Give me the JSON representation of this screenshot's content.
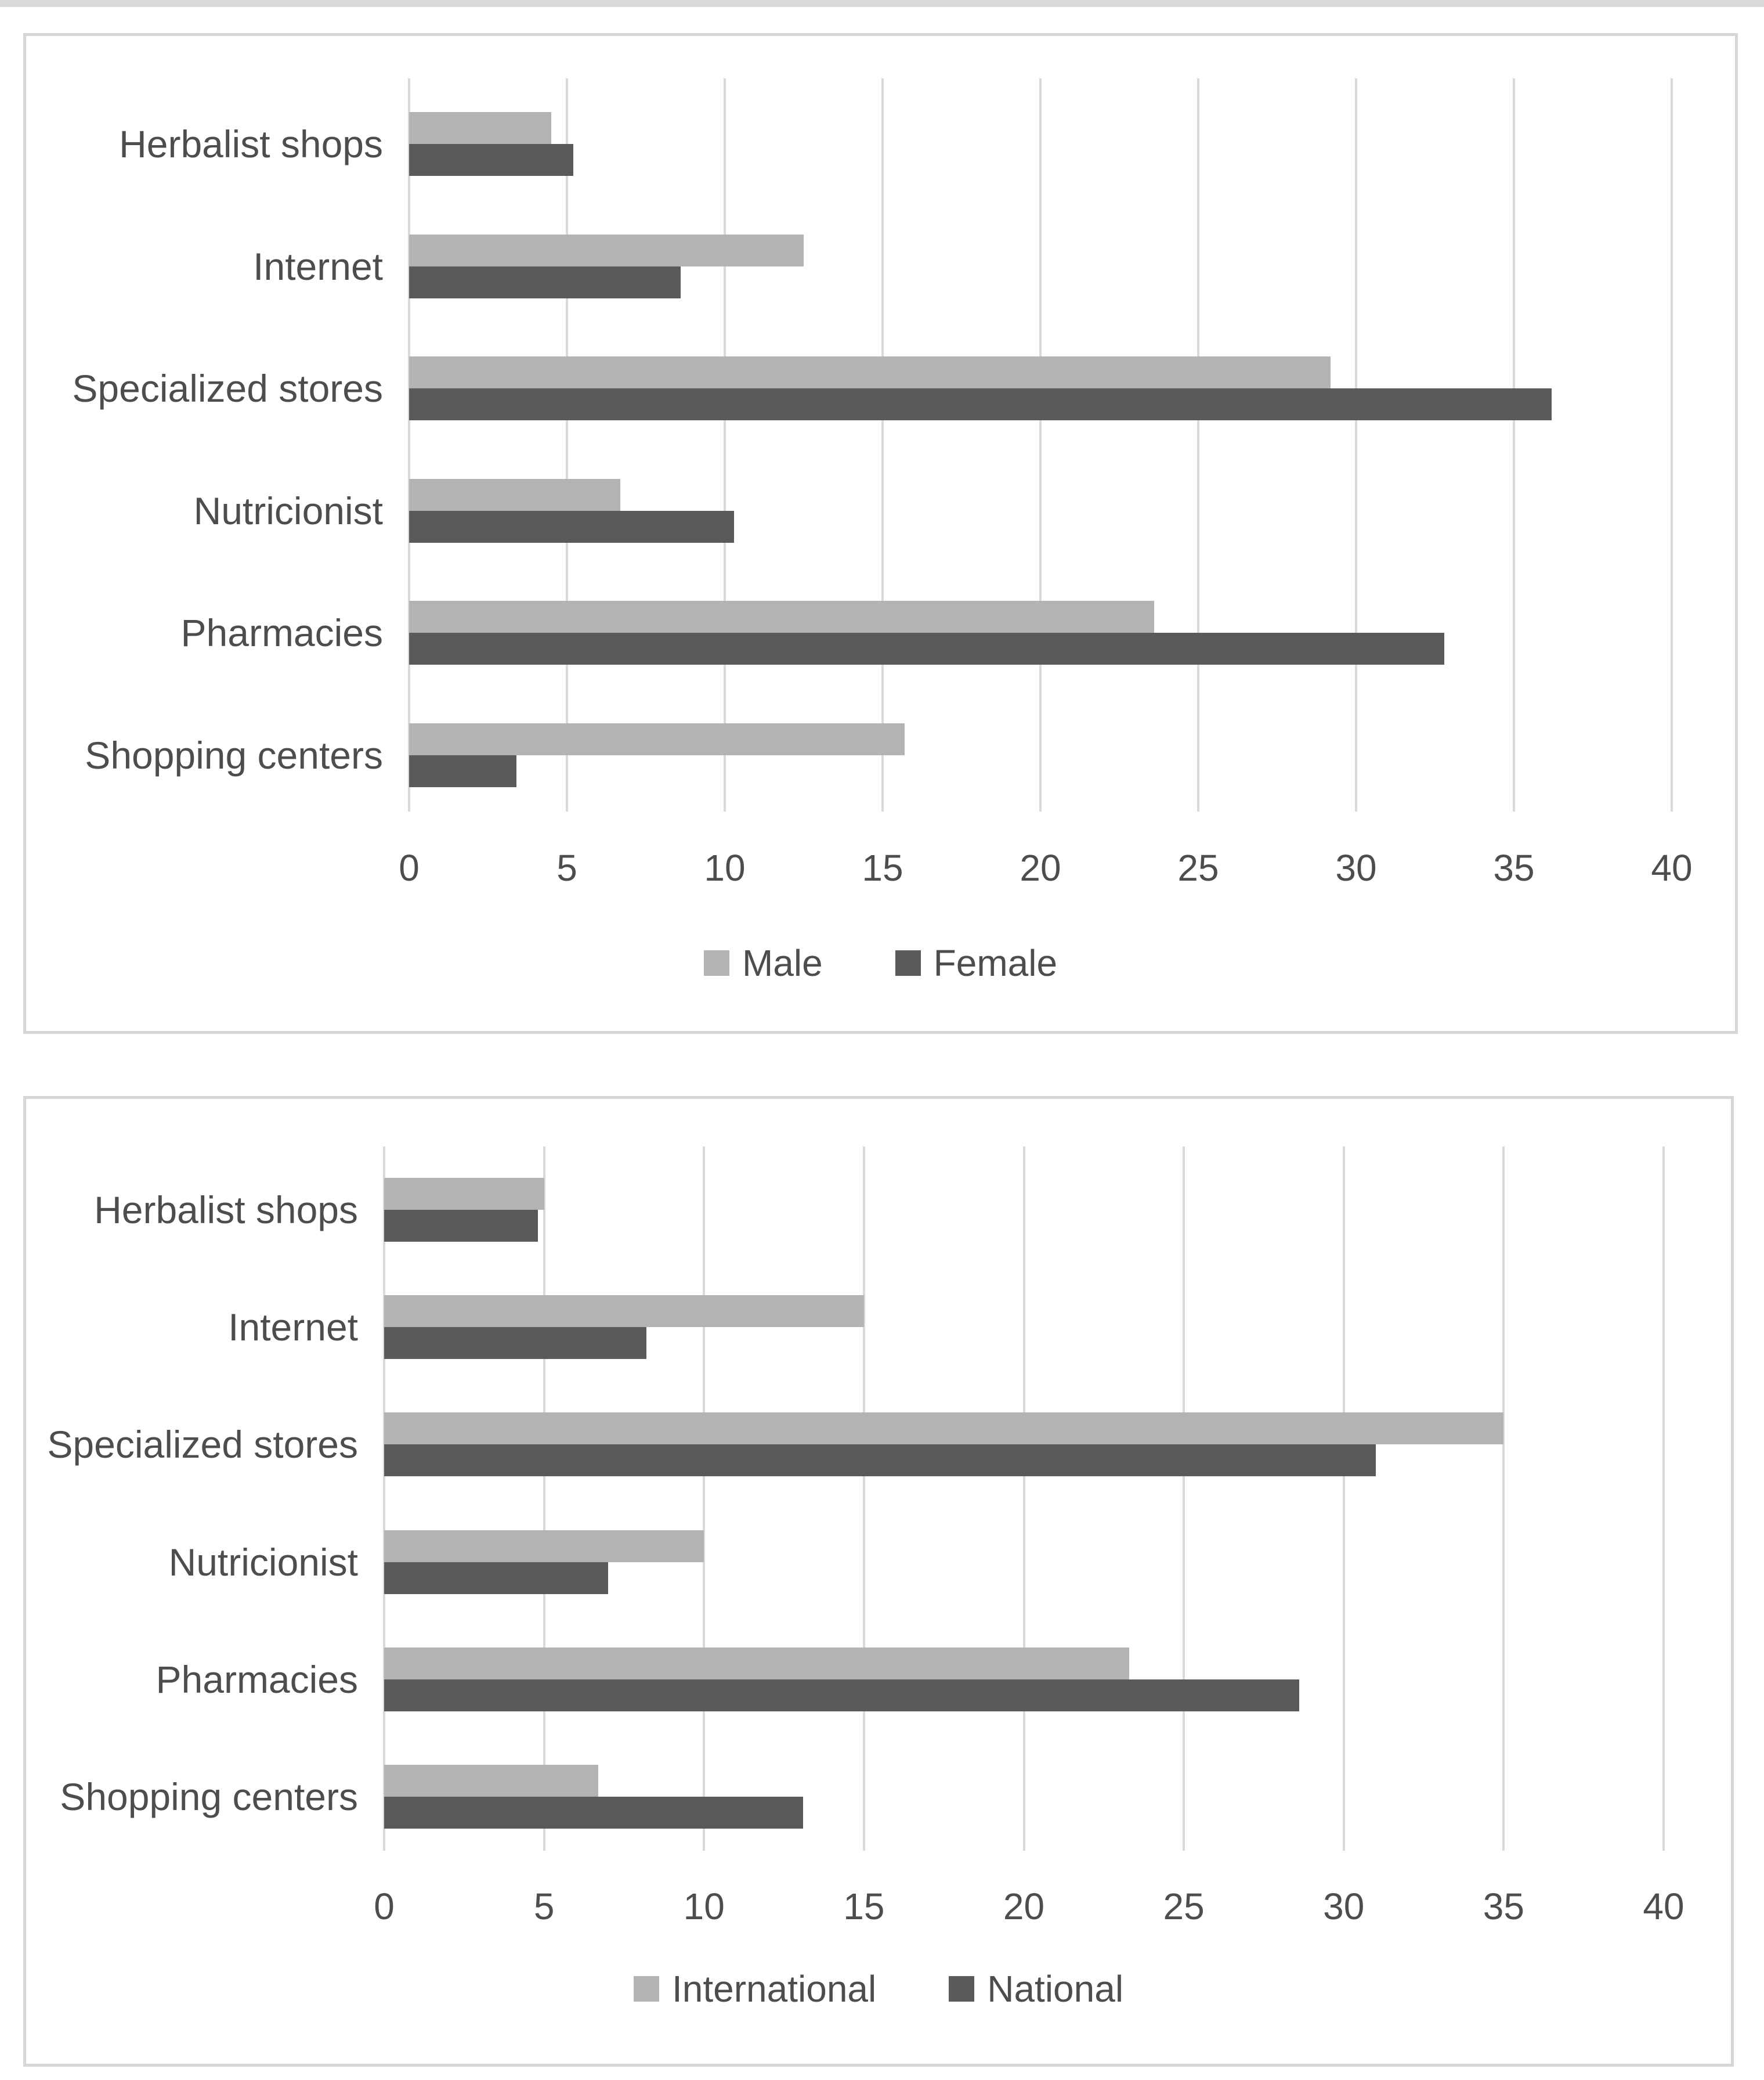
{
  "page": {
    "background": "#ffffff",
    "edge_strip_color": "#d9d9d9",
    "panel_border_color": "#d6d6d6",
    "gridline_color": "#d9d9d9",
    "text_color": "#4d4d4d"
  },
  "chart_data": [
    {
      "type": "bar",
      "orientation": "horizontal",
      "title": "",
      "categories": [
        "Herbalist shops",
        "Internet",
        "Specialized stores",
        "Nutricionist",
        "Pharmacies",
        "Shopping centers"
      ],
      "series": [
        {
          "name": "Male",
          "color": "#b3b3b3",
          "values": [
            4.5,
            12.5,
            29.2,
            6.7,
            23.6,
            15.7
          ]
        },
        {
          "name": "Female",
          "color": "#5a5a5a",
          "values": [
            5.2,
            8.6,
            36.2,
            10.3,
            32.8,
            3.4
          ]
        }
      ],
      "xlabel": "",
      "ylabel": "",
      "xlim": [
        0,
        40
      ],
      "ticks": [
        0,
        5,
        10,
        15,
        20,
        25,
        30,
        35,
        40
      ],
      "grid": true,
      "legend_position": "bottom"
    },
    {
      "type": "bar",
      "orientation": "horizontal",
      "title": "",
      "categories": [
        "Herbalist shops",
        "Internet",
        "Specialized stores",
        "Nutricionist",
        "Pharmacies",
        "Shopping centers"
      ],
      "series": [
        {
          "name": "International",
          "color": "#b3b3b3",
          "values": [
            5.0,
            15.0,
            35.0,
            10.0,
            23.3,
            6.7
          ]
        },
        {
          "name": "National",
          "color": "#5a5a5a",
          "values": [
            4.8,
            8.2,
            31.0,
            7.0,
            28.6,
            13.1
          ]
        }
      ],
      "xlabel": "",
      "ylabel": "",
      "xlim": [
        0,
        40
      ],
      "ticks": [
        0,
        5,
        10,
        15,
        20,
        25,
        30,
        35,
        40
      ],
      "grid": true,
      "legend_position": "bottom"
    }
  ]
}
